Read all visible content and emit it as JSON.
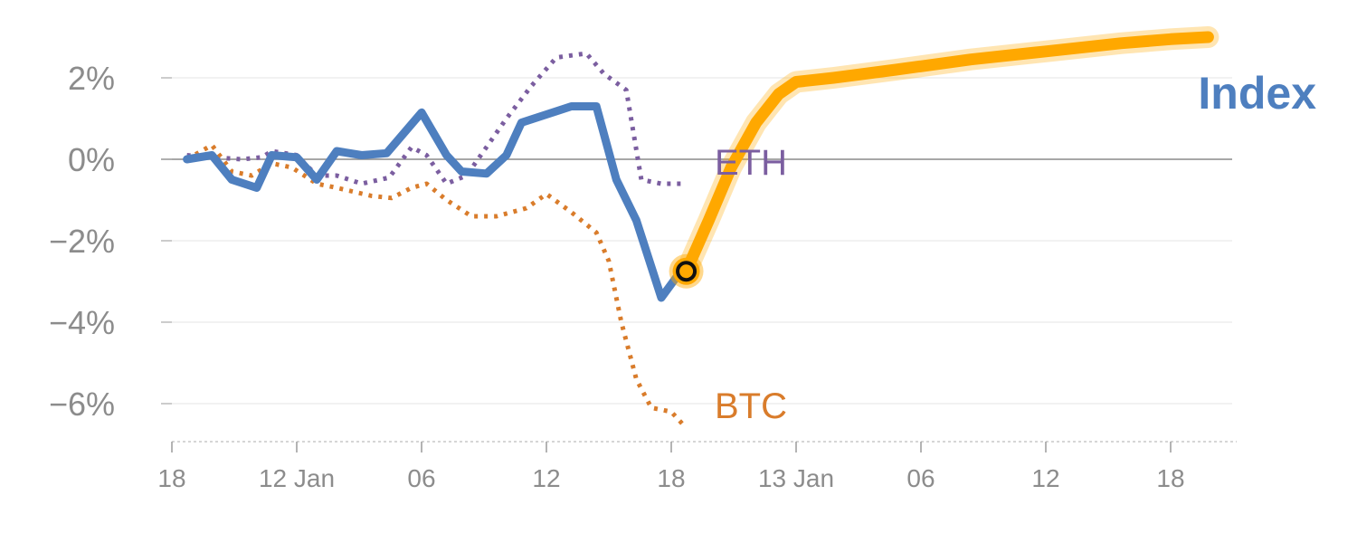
{
  "chart_data": {
    "type": "line",
    "title": "",
    "xlabel": "",
    "ylabel": "",
    "ylim": [
      -7,
      3
    ],
    "yticks": [
      {
        "value": 2,
        "label": "2%"
      },
      {
        "value": 0,
        "label": "0%"
      },
      {
        "value": -2,
        "label": "−2%"
      },
      {
        "value": -4,
        "label": "−4%"
      },
      {
        "value": -6,
        "label": "−6%"
      }
    ],
    "xlim": [
      0,
      42
    ],
    "xticks": [
      {
        "value": 0,
        "label": "18"
      },
      {
        "value": 5,
        "label": "12 Jan"
      },
      {
        "value": 10,
        "label": "06"
      },
      {
        "value": 15,
        "label": "12"
      },
      {
        "value": 20,
        "label": "18"
      },
      {
        "value": 25,
        "label": "13 Jan"
      },
      {
        "value": 30,
        "label": "06"
      },
      {
        "value": 35,
        "label": "12"
      },
      {
        "value": 40,
        "label": "18"
      }
    ],
    "series": [
      {
        "name": "ETH",
        "label": "ETH",
        "style": "dotted",
        "color": "#7b5ea0",
        "x": [
          0.6,
          1.6,
          2.8,
          3.6,
          4.0,
          5.0,
          5.8,
          6.6,
          7.6,
          8.7,
          9.6,
          10.2,
          11.0,
          11.8,
          12.6,
          13.4,
          14.4,
          15.4,
          16.6,
          17.3,
          18.2,
          18.8,
          19.6,
          20.6
        ],
        "y": [
          0.1,
          0.05,
          0.0,
          0.05,
          0.2,
          0.1,
          -0.4,
          -0.4,
          -0.6,
          -0.45,
          0.3,
          0.1,
          -0.6,
          -0.4,
          0.3,
          1.0,
          1.8,
          2.5,
          2.6,
          2.1,
          1.7,
          -0.5,
          -0.6,
          -0.6
        ]
      },
      {
        "name": "BTC",
        "label": "BTC",
        "style": "dotted",
        "color": "#d97c2b",
        "x": [
          0.6,
          1.6,
          2.4,
          3.2,
          4.0,
          4.8,
          5.8,
          6.6,
          8.0,
          8.8,
          9.6,
          10.2,
          11.0,
          12.0,
          13.0,
          14.2,
          15.0,
          16.0,
          17.0,
          17.5,
          18.0,
          18.6,
          19.2,
          20.0,
          20.6
        ],
        "y": [
          0.0,
          0.35,
          -0.3,
          -0.4,
          -0.1,
          -0.2,
          -0.6,
          -0.7,
          -0.9,
          -0.95,
          -0.7,
          -0.6,
          -1.0,
          -1.4,
          -1.4,
          -1.2,
          -0.85,
          -1.3,
          -1.8,
          -2.5,
          -4.0,
          -5.4,
          -6.1,
          -6.2,
          -6.6
        ]
      },
      {
        "name": "Index",
        "label": "Index",
        "style": "solid",
        "color": "#4e7fbf",
        "x": [
          0.6,
          1.6,
          2.4,
          3.4,
          4.0,
          5.0,
          5.8,
          6.6,
          7.6,
          8.6,
          10.0,
          11.0,
          11.6,
          12.6,
          13.4,
          14.0,
          15.0,
          16.0,
          17.0,
          17.8,
          18.6,
          19.6,
          20.2,
          20.6
        ],
        "y": [
          0.0,
          0.1,
          -0.5,
          -0.7,
          0.1,
          0.05,
          -0.5,
          0.2,
          0.1,
          0.15,
          1.15,
          0.1,
          -0.3,
          -0.35,
          0.1,
          0.9,
          1.1,
          1.3,
          1.3,
          -0.5,
          -1.5,
          -3.4,
          -2.9,
          -2.8
        ]
      },
      {
        "name": "Index forecast",
        "style": "band",
        "color": "#ffa800",
        "x": [
          20.6,
          21.5,
          22.4,
          23.4,
          24.3,
          25.0,
          26.5,
          29.0,
          32.0,
          35.0,
          38.0,
          40.0,
          41.5
        ],
        "y": [
          -2.75,
          -1.5,
          -0.2,
          0.9,
          1.6,
          1.9,
          2.0,
          2.2,
          2.45,
          2.65,
          2.85,
          2.95,
          3.0
        ]
      }
    ],
    "marker": {
      "x": 20.6,
      "y": -2.75,
      "color": "#ffa800"
    }
  }
}
